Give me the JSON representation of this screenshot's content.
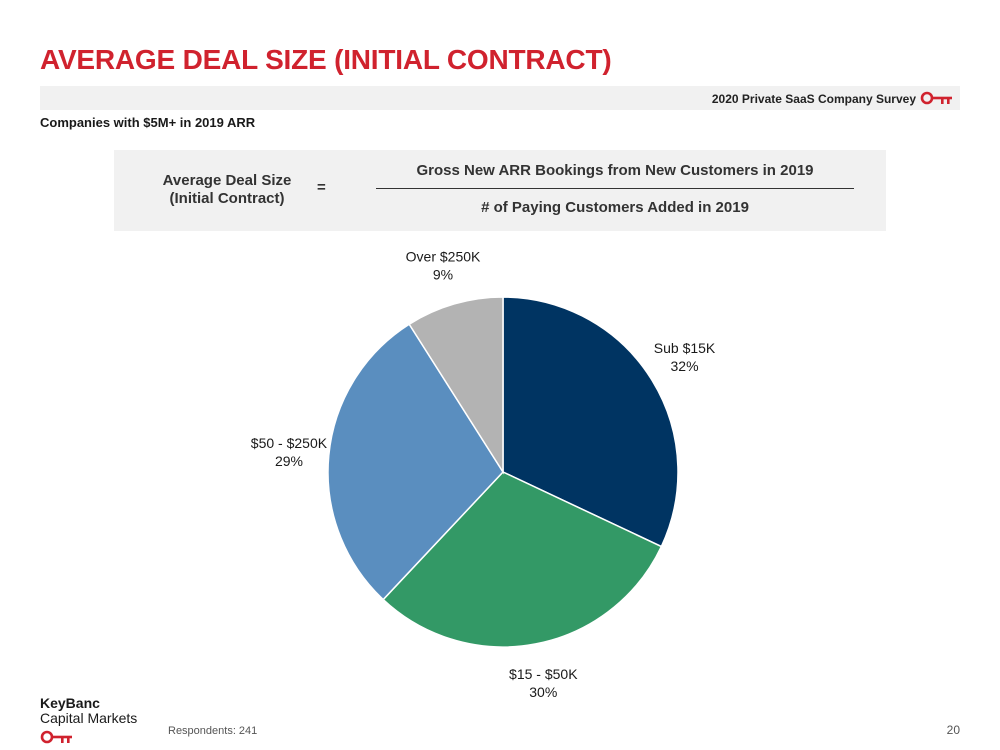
{
  "slide": {
    "title": "AVERAGE DEAL SIZE (INITIAL CONTRACT)",
    "survey_label": "2020 Private SaaS Company Survey",
    "subtitle": "Companies with $5M+ in 2019 ARR",
    "footnote": "Respondents: 241",
    "page_number": "20",
    "brand_color": "#d0222e"
  },
  "formula": {
    "lhs_line1": "Average Deal Size",
    "lhs_line2": "(Initial Contract)",
    "equals": "=",
    "numerator": "Gross New ARR Bookings from New Customers in 2019",
    "denominator": "# of Paying Customers Added in 2019"
  },
  "logo": {
    "line1": "KeyBanc",
    "line2": "Capital Markets",
    "icon": "key-icon"
  },
  "chart_data": {
    "type": "pie",
    "title": "",
    "slices": [
      {
        "label": "Sub $15K",
        "value": 32,
        "display": "32%",
        "color": "#003462"
      },
      {
        "label": "$15 - $50K",
        "value": 30,
        "display": "30%",
        "color": "#339966"
      },
      {
        "label": "$50 - $250K",
        "value": 29,
        "display": "29%",
        "color": "#5a8ebf"
      },
      {
        "label": "Over $250K",
        "value": 9,
        "display": "9%",
        "color": "#b3b3b3"
      }
    ],
    "start_angle_deg": 0,
    "direction": "clockwise",
    "legend": "none"
  }
}
